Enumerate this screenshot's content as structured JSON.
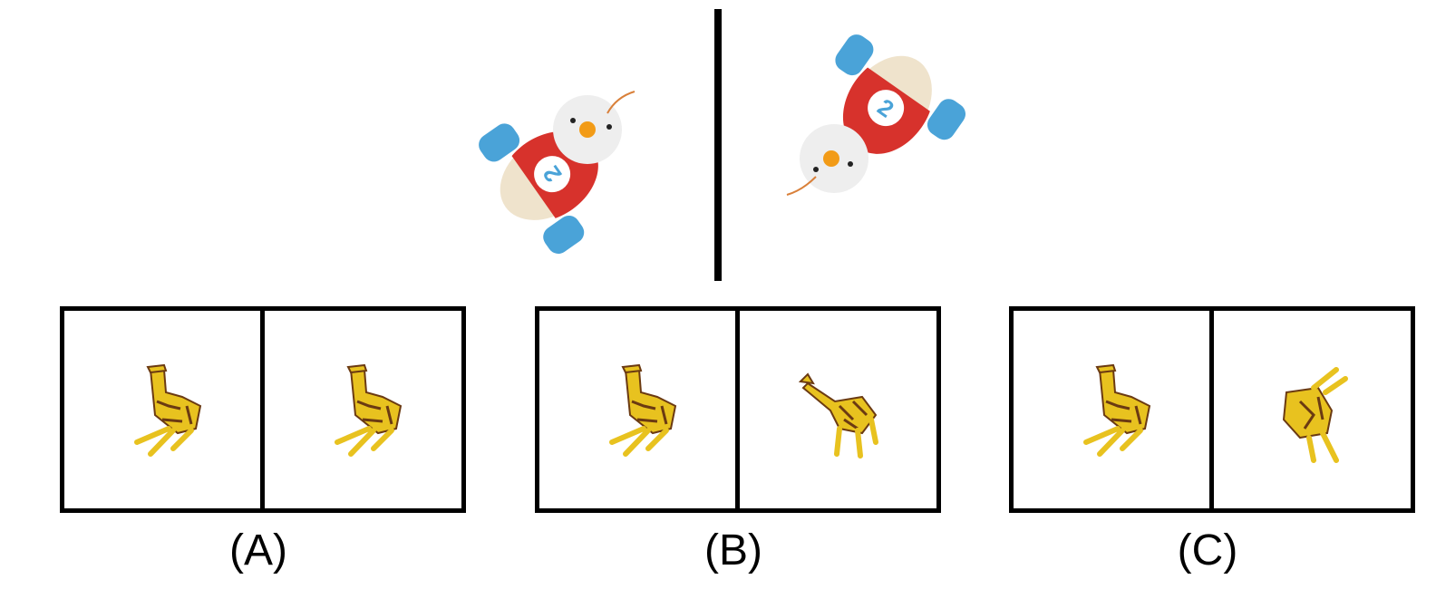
{
  "reference": {
    "name": "toy-car-duck"
  },
  "options": [
    {
      "label": "(A)"
    },
    {
      "label": "(B)"
    },
    {
      "label": "(C)"
    }
  ],
  "colors": {
    "red": "#d7322c",
    "blue": "#4aa3d8",
    "cream": "#efe3cc",
    "white": "#eeeeee",
    "orange": "#f29b17",
    "giraffe_yellow": "#e8c21f",
    "giraffe_brown": "#6b3a12"
  }
}
